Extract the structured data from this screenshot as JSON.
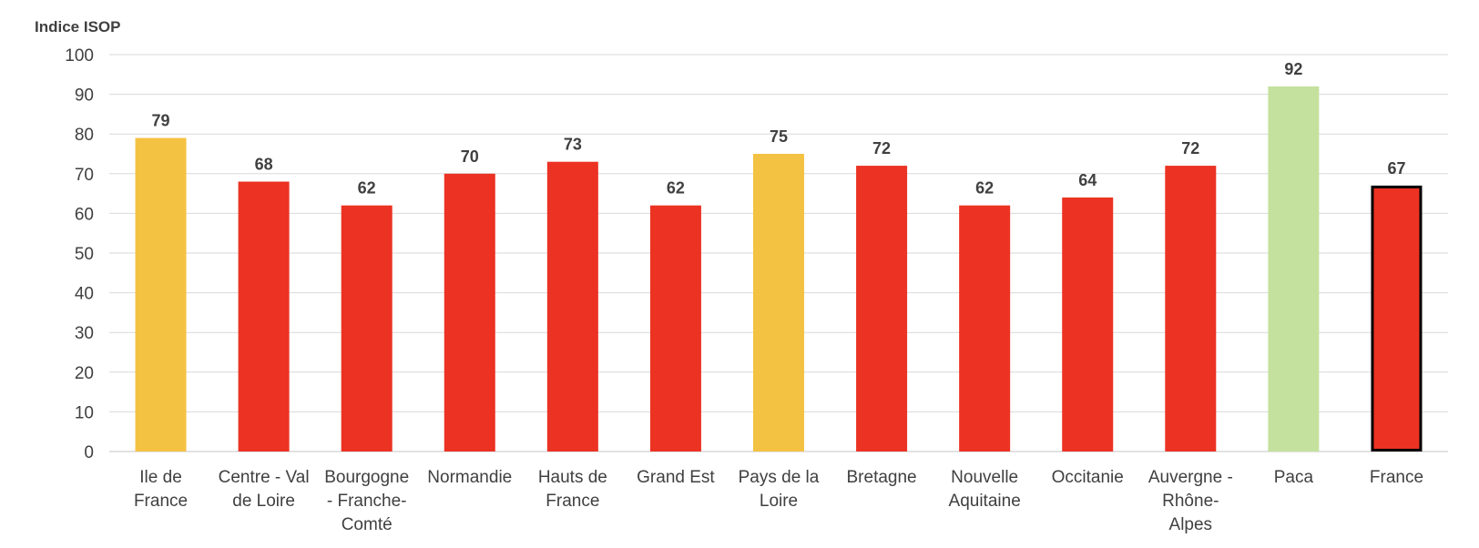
{
  "chart_data": {
    "type": "bar",
    "ylabel": "Indice ISOP",
    "ylim": [
      0,
      100
    ],
    "yticks": [
      0,
      10,
      20,
      30,
      40,
      50,
      60,
      70,
      80,
      90,
      100
    ],
    "grid": true,
    "categories": [
      [
        "Ile de",
        "France"
      ],
      [
        "Centre - Val",
        "de Loire"
      ],
      [
        "Bourgogne",
        "- Franche-",
        "Comté"
      ],
      [
        "Normandie"
      ],
      [
        "Hauts de",
        "France"
      ],
      [
        "Grand Est"
      ],
      [
        "Pays de la",
        "Loire"
      ],
      [
        "Bretagne"
      ],
      [
        "Nouvelle",
        "Aquitaine"
      ],
      [
        "Occitanie"
      ],
      [
        "Auvergne -",
        "Rhône-",
        "Alpes"
      ],
      [
        "Paca"
      ],
      [
        "France"
      ]
    ],
    "values": [
      79,
      68,
      62,
      70,
      73,
      62,
      75,
      72,
      62,
      64,
      72,
      92,
      67
    ],
    "bar_colors": [
      "#f4c242",
      "#eb3223",
      "#eb3223",
      "#eb3223",
      "#eb3223",
      "#eb3223",
      "#f4c242",
      "#eb3223",
      "#eb3223",
      "#eb3223",
      "#eb3223",
      "#c5e19e",
      "#eb3223"
    ],
    "highlight": "France",
    "highlight_outline": "#000000"
  }
}
